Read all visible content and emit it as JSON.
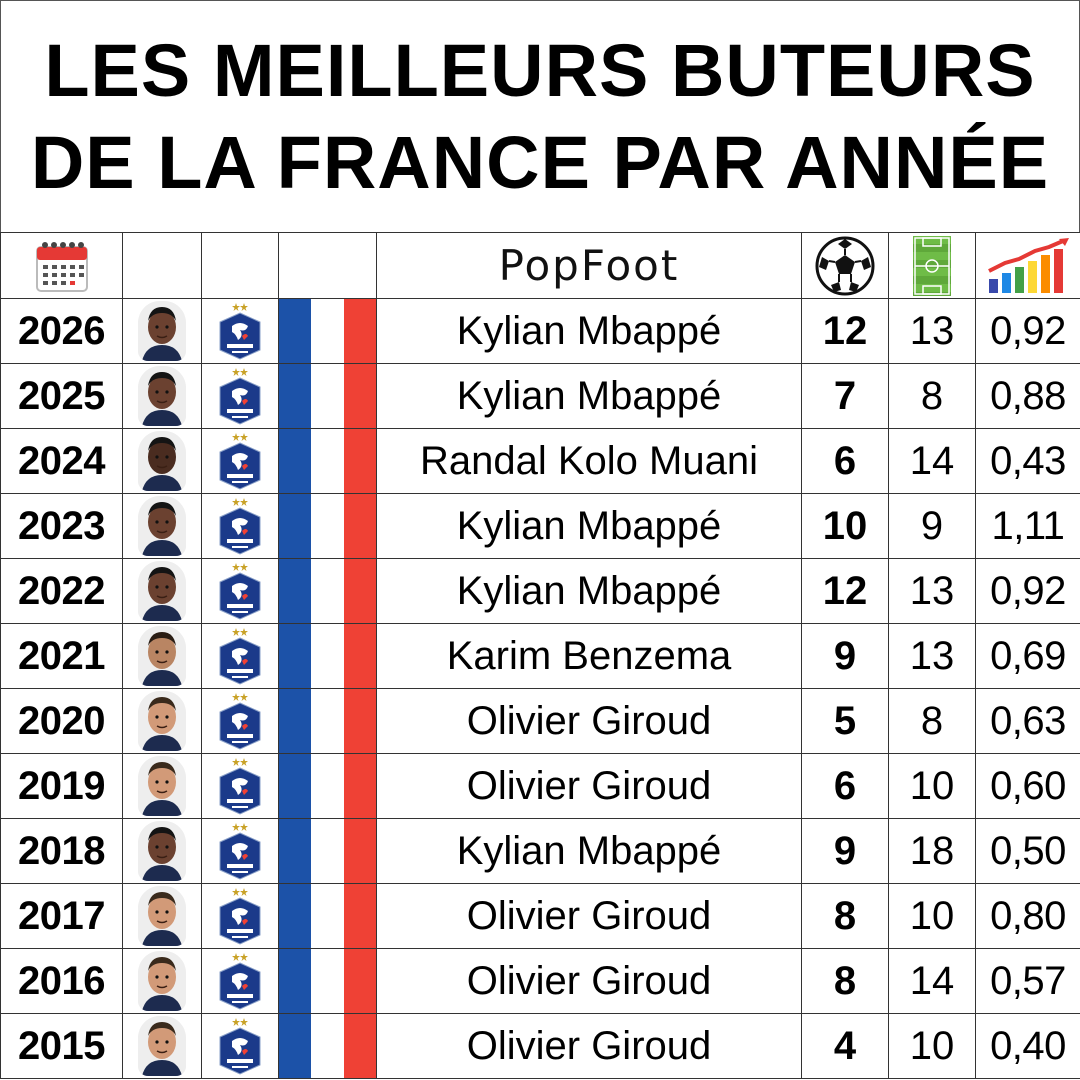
{
  "title": {
    "line1": "LES MEILLEURS BUTEURS",
    "line2": "DE LA FRANCE PAR ANNÉE"
  },
  "header": {
    "brand": "PopFoot",
    "icons": [
      "calendar-icon",
      "soccer-ball-icon",
      "football-pitch-icon",
      "growth-chart-icon"
    ]
  },
  "colors": {
    "flag_blue": "#1c52a8",
    "flag_white": "#ffffff",
    "flag_red": "#ef4135",
    "crest_blue": "#1b3a8a"
  },
  "rows": [
    {
      "year": "2026",
      "player": "Kylian Mbappé",
      "goals": "12",
      "matches": "13",
      "ratio": "0,92"
    },
    {
      "year": "2025",
      "player": "Kylian Mbappé",
      "goals": "7",
      "matches": "8",
      "ratio": "0,88"
    },
    {
      "year": "2024",
      "player": "Randal Kolo Muani",
      "goals": "6",
      "matches": "14",
      "ratio": "0,43"
    },
    {
      "year": "2023",
      "player": "Kylian Mbappé",
      "goals": "10",
      "matches": "9",
      "ratio": "1,11"
    },
    {
      "year": "2022",
      "player": "Kylian Mbappé",
      "goals": "12",
      "matches": "13",
      "ratio": "0,92"
    },
    {
      "year": "2021",
      "player": "Karim Benzema",
      "goals": "9",
      "matches": "13",
      "ratio": "0,69"
    },
    {
      "year": "2020",
      "player": "Olivier Giroud",
      "goals": "5",
      "matches": "8",
      "ratio": "0,63"
    },
    {
      "year": "2019",
      "player": "Olivier Giroud",
      "goals": "6",
      "matches": "10",
      "ratio": "0,60"
    },
    {
      "year": "2018",
      "player": "Kylian Mbappé",
      "goals": "9",
      "matches": "18",
      "ratio": "0,50"
    },
    {
      "year": "2017",
      "player": "Olivier Giroud",
      "goals": "8",
      "matches": "10",
      "ratio": "0,80"
    },
    {
      "year": "2016",
      "player": "Olivier Giroud",
      "goals": "8",
      "matches": "14",
      "ratio": "0,57"
    },
    {
      "year": "2015",
      "player": "Olivier Giroud",
      "goals": "4",
      "matches": "10",
      "ratio": "0,40"
    }
  ]
}
